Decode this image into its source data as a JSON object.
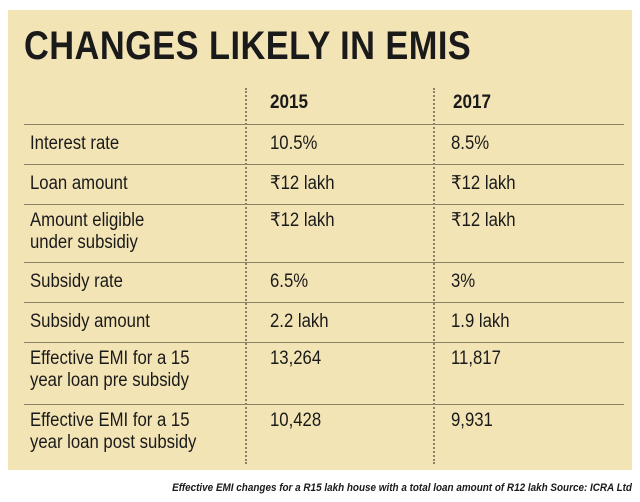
{
  "chart_data": {
    "type": "table",
    "title": "CHANGES LIKELY IN EMIS",
    "columns": [
      "2015",
      "2017"
    ],
    "rows": [
      {
        "label": [
          "Interest rate"
        ],
        "values": [
          "10.5%",
          "8.5%"
        ]
      },
      {
        "label": [
          "Loan amount"
        ],
        "values": [
          "₹12 lakh",
          "₹12 lakh"
        ]
      },
      {
        "label": [
          "Amount eligible",
          "under subsidiy"
        ],
        "values": [
          "₹12 lakh",
          "₹12 lakh"
        ]
      },
      {
        "label": [
          "Subsidy rate"
        ],
        "values": [
          "6.5%",
          "3%"
        ]
      },
      {
        "label": [
          "Subsidy amount"
        ],
        "values": [
          "2.2 lakh",
          "1.9 lakh"
        ]
      },
      {
        "label": [
          "Effective EMI for a 15",
          "year loan pre subsidy"
        ],
        "values": [
          "13,264",
          "11,817"
        ]
      },
      {
        "label": [
          "Effective EMI for a 15",
          "year loan post subsidy"
        ],
        "values": [
          "10,428",
          "9,931"
        ]
      }
    ],
    "caption": "Effective EMI changes for a R15 lakh house with a total loan amount of R12 lakh Source: ICRA Ltd"
  },
  "colors": {
    "panel_background": "#f3e4b6",
    "text": "#1a1a1a",
    "rule": "#8a8066"
  }
}
